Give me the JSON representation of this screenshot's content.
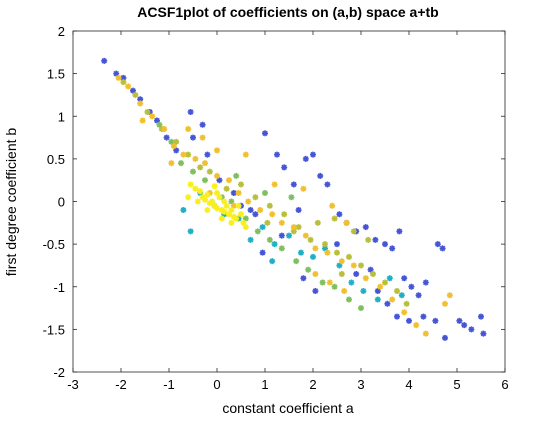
{
  "chart_data": {
    "type": "scatter",
    "title": "ACSF1plot of coefficients on (a,b) space a+tb",
    "xlabel": "constant coefficient a",
    "ylabel": "first degree coefficient b",
    "xlim": [
      -3,
      6
    ],
    "ylim": [
      -2,
      2
    ],
    "xticks": [
      "-3",
      "-2",
      "-1",
      "0",
      "1",
      "2",
      "3",
      "4",
      "5",
      "6"
    ],
    "yticks": [
      "-2",
      "-1.5",
      "-1",
      "-0.5",
      "0",
      "0.5",
      "1",
      "1.5",
      "2"
    ],
    "grid": false,
    "legend": "none",
    "marker": "asterisk",
    "series": [
      {
        "color": "#4555d6",
        "points": [
          [
            -2.35,
            1.65
          ],
          [
            -2.1,
            1.5
          ],
          [
            -1.95,
            1.45
          ],
          [
            -1.75,
            1.3
          ],
          [
            -1.6,
            1.2
          ],
          [
            -1.4,
            1.05
          ],
          [
            -1.25,
            0.95
          ],
          [
            -1.05,
            0.75
          ],
          [
            -0.85,
            0.6
          ],
          [
            -0.55,
            1.05
          ],
          [
            -0.5,
            0.75
          ],
          [
            -0.3,
            0.9
          ],
          [
            -0.2,
            0.55
          ],
          [
            0.05,
            0.25
          ],
          [
            0.35,
            0.1
          ],
          [
            0.5,
            -0.05
          ],
          [
            0.8,
            -0.15
          ],
          [
            1.0,
            0.8
          ],
          [
            1.25,
            0.55
          ],
          [
            1.4,
            0.4
          ],
          [
            1.6,
            0.2
          ],
          [
            1.7,
            -0.1
          ],
          [
            1.85,
            0.5
          ],
          [
            2.0,
            0.55
          ],
          [
            2.15,
            0.3
          ],
          [
            2.3,
            0.2
          ],
          [
            2.55,
            -0.15
          ],
          [
            2.7,
            -0.25
          ],
          [
            2.9,
            -0.35
          ],
          [
            3.1,
            -0.3
          ],
          [
            3.3,
            -0.45
          ],
          [
            3.5,
            -0.5
          ],
          [
            3.65,
            -0.55
          ],
          [
            3.8,
            -0.35
          ],
          [
            3.9,
            -0.9
          ],
          [
            4.05,
            -1.0
          ],
          [
            4.2,
            -1.1
          ],
          [
            4.35,
            -0.95
          ],
          [
            4.6,
            -0.5
          ],
          [
            4.7,
            -0.55
          ],
          [
            3.2,
            -0.8
          ],
          [
            3.35,
            -1.05
          ],
          [
            3.55,
            -1.2
          ],
          [
            3.75,
            -1.35
          ],
          [
            4.0,
            -1.4
          ],
          [
            4.3,
            -1.35
          ],
          [
            4.55,
            -1.4
          ],
          [
            5.05,
            -1.4
          ],
          [
            5.15,
            -1.45
          ],
          [
            5.3,
            -1.5
          ],
          [
            5.5,
            -1.35
          ],
          [
            5.55,
            -1.55
          ],
          [
            4.75,
            -1.6
          ],
          [
            2.5,
            -0.5
          ],
          [
            2.9,
            -0.85
          ],
          [
            1.35,
            -0.4
          ],
          [
            0.95,
            -0.6
          ],
          [
            1.8,
            -0.9
          ],
          [
            2.05,
            -1.05
          ],
          [
            0.7,
            -0.1
          ]
        ]
      },
      {
        "color": "#1fb0c8",
        "points": [
          [
            -0.7,
            -0.1
          ],
          [
            -0.55,
            -0.35
          ],
          [
            -0.35,
            0.1
          ],
          [
            -0.05,
            -0.05
          ],
          [
            0.15,
            -0.15
          ],
          [
            0.45,
            -0.2
          ],
          [
            0.7,
            -0.45
          ],
          [
            0.95,
            -0.3
          ],
          [
            1.2,
            -0.5
          ],
          [
            1.5,
            -0.4
          ],
          [
            1.75,
            -0.6
          ],
          [
            2.0,
            -0.65
          ],
          [
            2.25,
            -0.55
          ],
          [
            2.55,
            -0.75
          ],
          [
            2.8,
            -0.95
          ],
          [
            3.05,
            -1.05
          ],
          [
            3.35,
            -1.15
          ],
          [
            3.6,
            -0.9
          ],
          [
            3.85,
            -1.1
          ],
          [
            1.15,
            -0.7
          ]
        ]
      },
      {
        "color": "#7fbf5f",
        "points": [
          [
            -1.2,
            0.9
          ],
          [
            -0.95,
            0.7
          ],
          [
            -0.75,
            0.45
          ],
          [
            -0.5,
            0.35
          ],
          [
            -0.25,
            0.25
          ],
          [
            0.1,
            0.05
          ],
          [
            0.3,
            0.0
          ],
          [
            0.6,
            -0.2
          ],
          [
            0.85,
            -0.35
          ],
          [
            1.1,
            -0.45
          ],
          [
            1.35,
            -0.55
          ],
          [
            1.65,
            -0.7
          ],
          [
            1.9,
            -0.8
          ],
          [
            2.2,
            -0.95
          ],
          [
            2.45,
            -1.0
          ],
          [
            2.75,
            -1.15
          ],
          [
            3.0,
            -1.25
          ],
          [
            0.4,
            0.3
          ],
          [
            1.0,
            0.1
          ],
          [
            1.55,
            0.05
          ]
        ]
      },
      {
        "color": "#b8bf3a",
        "points": [
          [
            -1.95,
            1.4
          ],
          [
            -1.7,
            1.25
          ],
          [
            -1.45,
            1.05
          ],
          [
            -1.15,
            0.85
          ],
          [
            -0.85,
            0.7
          ],
          [
            -0.6,
            0.55
          ],
          [
            -0.35,
            0.4
          ],
          [
            -0.15,
            0.35
          ],
          [
            0.2,
            0.15
          ],
          [
            0.5,
            0.2
          ],
          [
            0.8,
            0.05
          ],
          [
            1.1,
            -0.05
          ],
          [
            1.4,
            -0.15
          ],
          [
            1.7,
            -0.3
          ],
          [
            1.95,
            -0.45
          ],
          [
            2.25,
            -0.5
          ],
          [
            2.5,
            -0.6
          ],
          [
            2.75,
            -0.65
          ],
          [
            3.0,
            -0.75
          ],
          [
            3.25,
            -0.85
          ],
          [
            3.5,
            -0.95
          ],
          [
            3.75,
            -1.05
          ],
          [
            3.95,
            -1.2
          ],
          [
            1.05,
            -0.25
          ],
          [
            1.6,
            -0.35
          ],
          [
            2.1,
            -0.25
          ],
          [
            2.45,
            -0.2
          ],
          [
            2.85,
            -0.35
          ],
          [
            3.15,
            -0.45
          ],
          [
            2.6,
            -0.85
          ]
        ]
      },
      {
        "color": "#f0c030",
        "points": [
          [
            -2.05,
            1.45
          ],
          [
            -1.85,
            1.35
          ],
          [
            -1.6,
            1.15
          ],
          [
            -1.35,
            1.0
          ],
          [
            -1.1,
            0.85
          ],
          [
            -0.9,
            0.65
          ],
          [
            -0.7,
            0.55
          ],
          [
            -0.45,
            0.5
          ],
          [
            -0.25,
            0.45
          ],
          [
            0.0,
            0.3
          ],
          [
            0.25,
            0.25
          ],
          [
            0.45,
            0.1
          ],
          [
            0.65,
            0.0
          ],
          [
            0.9,
            -0.1
          ],
          [
            1.15,
            -0.15
          ],
          [
            1.35,
            -0.25
          ],
          [
            1.6,
            -0.3
          ],
          [
            1.85,
            -0.4
          ],
          [
            2.05,
            -0.55
          ],
          [
            2.3,
            -0.6
          ],
          [
            2.6,
            -0.7
          ],
          [
            2.85,
            -0.75
          ],
          [
            3.1,
            -0.9
          ],
          [
            3.4,
            -1.0
          ],
          [
            3.65,
            -1.15
          ],
          [
            3.9,
            -1.3
          ],
          [
            4.15,
            -1.45
          ],
          [
            4.35,
            -1.55
          ],
          [
            4.75,
            -1.2
          ],
          [
            4.85,
            -1.1
          ],
          [
            -0.6,
            0.85
          ],
          [
            -0.3,
            0.75
          ],
          [
            0.0,
            0.6
          ],
          [
            0.6,
            0.55
          ],
          [
            1.2,
            0.2
          ],
          [
            1.8,
            0.15
          ],
          [
            2.4,
            -0.05
          ],
          [
            2.7,
            -0.25
          ],
          [
            2.05,
            -0.85
          ],
          [
            2.35,
            -0.95
          ],
          [
            2.65,
            -1.05
          ],
          [
            -1.55,
            0.95
          ],
          [
            -0.95,
            0.45
          ],
          [
            -0.15,
            0.1
          ],
          [
            0.35,
            -0.05
          ]
        ]
      },
      {
        "color": "#f9ef1a",
        "points": [
          [
            -0.55,
            0.2
          ],
          [
            -0.45,
            0.15
          ],
          [
            -0.35,
            0.12
          ],
          [
            -0.3,
            0.05
          ],
          [
            -0.25,
            0.02
          ],
          [
            -0.2,
            0.08
          ],
          [
            -0.15,
            -0.02
          ],
          [
            -0.1,
            0.0
          ],
          [
            -0.05,
            -0.05
          ],
          [
            0.0,
            -0.08
          ],
          [
            0.05,
            0.05
          ],
          [
            0.1,
            -0.1
          ],
          [
            0.15,
            -0.12
          ],
          [
            0.2,
            -0.05
          ],
          [
            0.25,
            -0.15
          ],
          [
            0.3,
            -0.1
          ],
          [
            0.35,
            -0.18
          ],
          [
            0.4,
            -0.2
          ],
          [
            0.5,
            -0.15
          ],
          [
            0.55,
            -0.25
          ],
          [
            -0.4,
            0.0
          ],
          [
            -0.2,
            -0.1
          ],
          [
            0.0,
            0.1
          ],
          [
            0.15,
            0.0
          ],
          [
            0.3,
            -0.25
          ],
          [
            -0.05,
            0.18
          ],
          [
            0.1,
            -0.2
          ],
          [
            0.6,
            -0.3
          ],
          [
            -0.6,
            0.05
          ],
          [
            0.45,
            -0.05
          ]
        ]
      }
    ]
  }
}
